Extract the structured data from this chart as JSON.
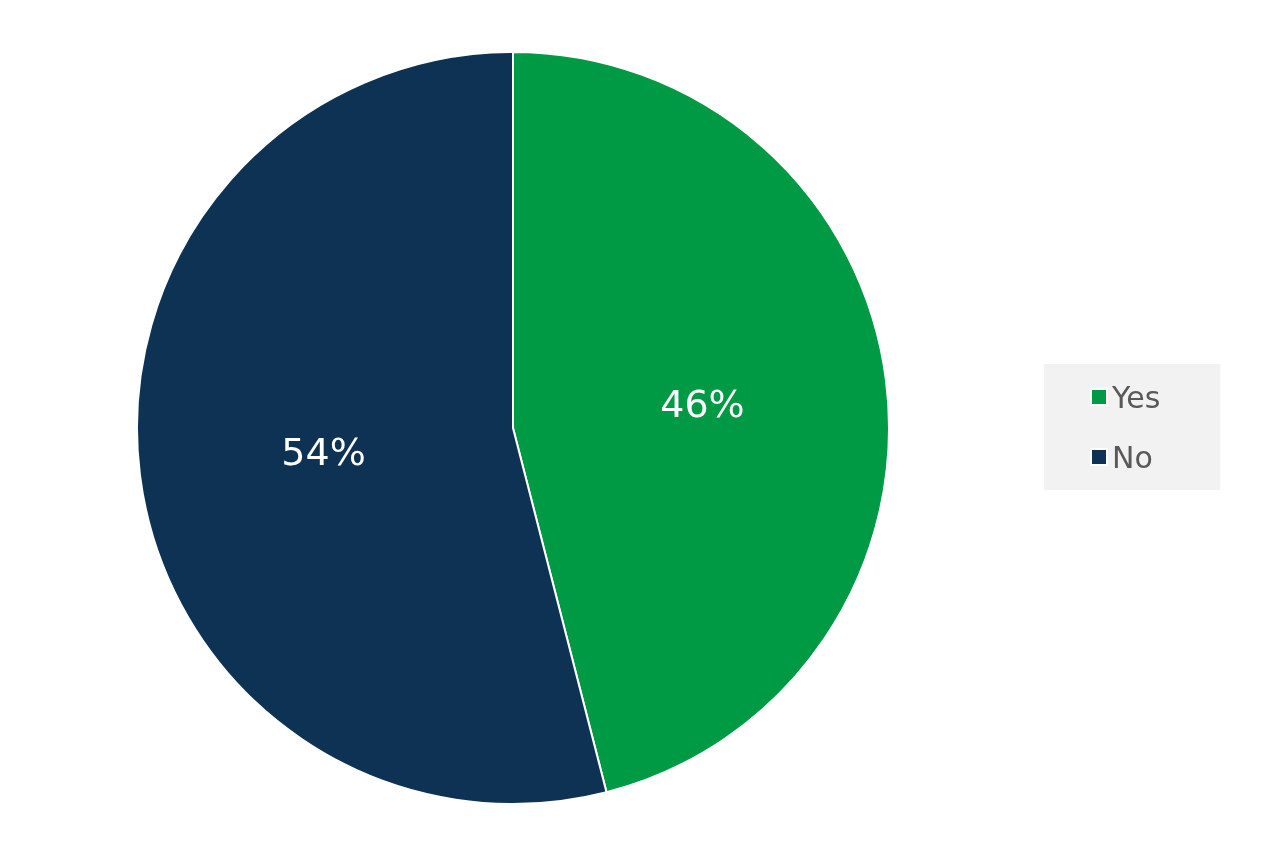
{
  "chart_data": {
    "type": "pie",
    "categories": [
      "Yes",
      "No"
    ],
    "values": [
      46,
      54
    ],
    "colors": [
      "#009a44",
      "#0e3254"
    ],
    "value_labels": [
      "46%",
      "54%"
    ],
    "legend": "right"
  }
}
